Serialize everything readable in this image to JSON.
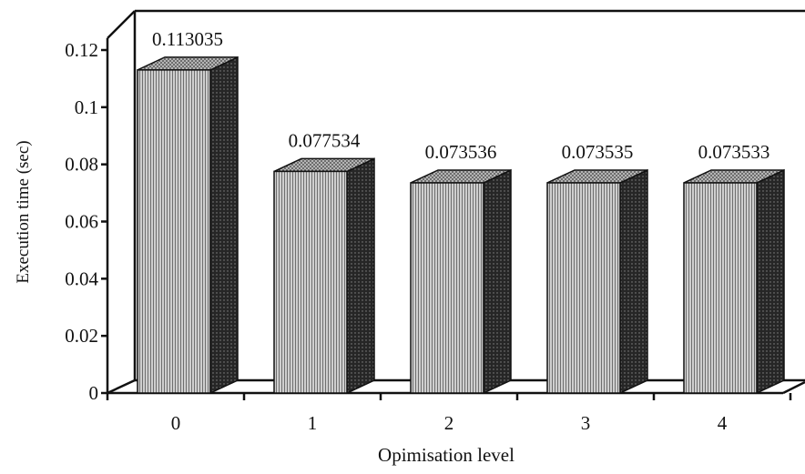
{
  "chart_data": {
    "type": "bar",
    "title": "",
    "xlabel": "Opimisation level",
    "ylabel": "Execution time (sec)",
    "categories": [
      "0",
      "1",
      "2",
      "3",
      "4"
    ],
    "values": [
      0.113035,
      0.077534,
      0.073536,
      0.073535,
      0.073533
    ],
    "data_labels": [
      "0.113035",
      "0.077534",
      "0.073536",
      "0.073535",
      "0.073533"
    ],
    "ylim": [
      0,
      0.12
    ],
    "yticks": [
      0,
      0.02,
      0.04,
      0.06,
      0.08,
      0.1,
      0.12
    ],
    "ytick_labels": [
      "0",
      "0.02",
      "0.04",
      "0.06",
      "0.08",
      "0.1",
      "0.12"
    ],
    "grid": false,
    "style": "3d-bars",
    "colors": {
      "ink": "#111111",
      "face": "#bdbdbd",
      "side": "#2a2a2a",
      "top": "#9a9a9a"
    }
  }
}
